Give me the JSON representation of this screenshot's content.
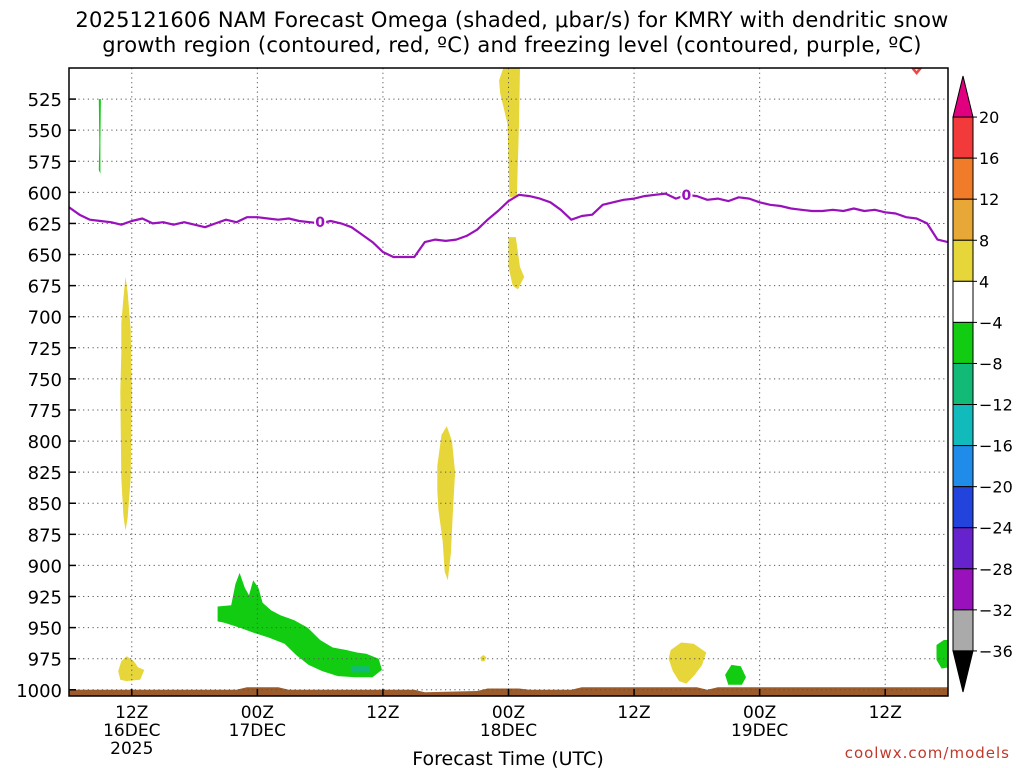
{
  "title": {
    "line1": "2025121606 NAM Forecast Omega (shaded, μbar/s) for KMRY with dendritic snow",
    "line2": "growth region (contoured, red, ºC) and freezing level (contoured, purple, ºC)"
  },
  "watermark": "coolwx.com/models",
  "chart_data": {
    "type": "heatmap",
    "title": "2025121606 NAM Forecast Omega (shaded, μbar/s) for KMRY with dendritic snow growth region (contoured, red, ºC) and freezing level (contoured, purple, ºC)",
    "xlabel": "Forecast Time (UTC)",
    "ylabel": "",
    "x_unit": "hours from 2025-12-16 06Z",
    "xlim": [
      0,
      84
    ],
    "ylim": [
      1005,
      500
    ],
    "y_ticks": [
      525,
      550,
      575,
      600,
      625,
      650,
      675,
      700,
      725,
      750,
      775,
      800,
      825,
      850,
      875,
      900,
      925,
      950,
      975,
      1000
    ],
    "x_ticks": [
      {
        "x": 6,
        "line1": "12Z",
        "line2": "16DEC",
        "line3": "2025"
      },
      {
        "x": 18,
        "line1": "00Z",
        "line2": "17DEC",
        "line3": ""
      },
      {
        "x": 30,
        "line1": "12Z",
        "line2": "",
        "line3": ""
      },
      {
        "x": 42,
        "line1": "00Z",
        "line2": "18DEC",
        "line3": ""
      },
      {
        "x": 54,
        "line1": "12Z",
        "line2": "",
        "line3": ""
      },
      {
        "x": 66,
        "line1": "00Z",
        "line2": "19DEC",
        "line3": ""
      },
      {
        "x": 78,
        "line1": "12Z",
        "line2": "",
        "line3": ""
      }
    ],
    "colorbar": {
      "labels": [
        "20",
        "16",
        "12",
        "8",
        "4",
        "−4",
        "−8",
        "−12",
        "−16",
        "−20",
        "−24",
        "−28",
        "−32",
        "−36"
      ],
      "colors": [
        "#e0007f",
        "#f23a3a",
        "#f07b28",
        "#e8a838",
        "#e6d63a",
        "#ffffff",
        "#11cc11",
        "#11bb77",
        "#11bbbb",
        "#1e8ce8",
        "#2244dd",
        "#6622cc",
        "#9911bb",
        "#aaaaaa",
        "#000000"
      ]
    },
    "freezing_level": {
      "label": "0",
      "color": "#9911bb",
      "points": [
        [
          0,
          612
        ],
        [
          1,
          618
        ],
        [
          2,
          622
        ],
        [
          3,
          623
        ],
        [
          4,
          624
        ],
        [
          5,
          626
        ],
        [
          6,
          623
        ],
        [
          7,
          621
        ],
        [
          8,
          625
        ],
        [
          9,
          624
        ],
        [
          10,
          626
        ],
        [
          11,
          624
        ],
        [
          12,
          626
        ],
        [
          13,
          628
        ],
        [
          14,
          625
        ],
        [
          15,
          622
        ],
        [
          16,
          624
        ],
        [
          17,
          620
        ],
        [
          18,
          620
        ],
        [
          19,
          621
        ],
        [
          20,
          622
        ],
        [
          21,
          621
        ],
        [
          22,
          623
        ],
        [
          23,
          624
        ],
        [
          24,
          625
        ],
        [
          25,
          623
        ],
        [
          26,
          625
        ],
        [
          27,
          628
        ],
        [
          28,
          634
        ],
        [
          29,
          640
        ],
        [
          30,
          648
        ],
        [
          31,
          652
        ],
        [
          32,
          652
        ],
        [
          33,
          652
        ],
        [
          34,
          640
        ],
        [
          35,
          638
        ],
        [
          36,
          639
        ],
        [
          37,
          638
        ],
        [
          38,
          635
        ],
        [
          39,
          630
        ],
        [
          40,
          622
        ],
        [
          41,
          615
        ],
        [
          42,
          607
        ],
        [
          43,
          602
        ],
        [
          44,
          603
        ],
        [
          45,
          605
        ],
        [
          46,
          608
        ],
        [
          47,
          614
        ],
        [
          48,
          622
        ],
        [
          49,
          619
        ],
        [
          50,
          618
        ],
        [
          51,
          610
        ],
        [
          52,
          608
        ],
        [
          53,
          606
        ],
        [
          54,
          605
        ],
        [
          55,
          603
        ],
        [
          56,
          602
        ],
        [
          57,
          601
        ],
        [
          58,
          605
        ],
        [
          59,
          602
        ],
        [
          60,
          603
        ],
        [
          61,
          606
        ],
        [
          62,
          605
        ],
        [
          63,
          607
        ],
        [
          64,
          604
        ],
        [
          65,
          605
        ],
        [
          66,
          608
        ],
        [
          67,
          610
        ],
        [
          68,
          611
        ],
        [
          69,
          613
        ],
        [
          70,
          614
        ],
        [
          71,
          615
        ],
        [
          72,
          615
        ],
        [
          73,
          614
        ],
        [
          74,
          615
        ],
        [
          75,
          613
        ],
        [
          76,
          615
        ],
        [
          77,
          614
        ],
        [
          78,
          616
        ],
        [
          79,
          617
        ],
        [
          80,
          620
        ],
        [
          81,
          621
        ],
        [
          82,
          625
        ],
        [
          83,
          638
        ],
        [
          84,
          640
        ]
      ]
    },
    "omega_regions": [
      {
        "value": 4,
        "color": "#e6d63a",
        "points": [
          [
            41.5,
            500
          ],
          [
            43.1,
            500
          ],
          [
            43.0,
            545
          ],
          [
            42.8,
            603
          ],
          [
            42.1,
            604
          ],
          [
            41.9,
            545
          ],
          [
            41.2,
            520
          ],
          [
            41.1,
            510
          ]
        ]
      },
      {
        "value": 4,
        "color": "#e6d63a",
        "points": [
          [
            42.0,
            636
          ],
          [
            42.7,
            636
          ],
          [
            43.1,
            660
          ],
          [
            43.5,
            668
          ],
          [
            42.9,
            678
          ],
          [
            42.4,
            675
          ],
          [
            42.0,
            660
          ]
        ]
      },
      {
        "value": 4,
        "color": "#e6d63a",
        "points": [
          [
            5.0,
            705
          ],
          [
            5.2,
            685
          ],
          [
            5.4,
            668
          ],
          [
            5.6,
            680
          ],
          [
            5.9,
            710
          ],
          [
            6.0,
            760
          ],
          [
            5.9,
            830
          ],
          [
            5.6,
            862
          ],
          [
            5.4,
            872
          ],
          [
            5.2,
            860
          ],
          [
            5.0,
            830
          ],
          [
            4.9,
            760
          ],
          [
            5.0,
            730
          ]
        ]
      },
      {
        "value": 4,
        "color": "#e6d63a",
        "points": [
          [
            35.2,
            820
          ],
          [
            35.6,
            795
          ],
          [
            36.1,
            788
          ],
          [
            36.6,
            800
          ],
          [
            36.9,
            825
          ],
          [
            36.7,
            855
          ],
          [
            36.5,
            890
          ],
          [
            36.2,
            912
          ],
          [
            35.9,
            905
          ],
          [
            35.7,
            880
          ],
          [
            35.3,
            855
          ],
          [
            35.2,
            840
          ]
        ]
      },
      {
        "value": 4,
        "color": "#e6d63a",
        "points": [
          [
            4.7,
            985
          ],
          [
            5.0,
            977
          ],
          [
            5.5,
            973
          ],
          [
            6.2,
            977
          ],
          [
            6.6,
            982
          ],
          [
            7.2,
            984
          ],
          [
            6.8,
            992
          ],
          [
            5.5,
            993
          ],
          [
            4.9,
            992
          ]
        ]
      },
      {
        "value": 4,
        "color": "#e6d63a",
        "points": [
          [
            57.5,
            968
          ],
          [
            58.5,
            962
          ],
          [
            59.7,
            963
          ],
          [
            60.9,
            970
          ],
          [
            60.5,
            980
          ],
          [
            59.8,
            988
          ],
          [
            59.0,
            995
          ],
          [
            58.3,
            993
          ],
          [
            57.7,
            985
          ],
          [
            57.3,
            975
          ]
        ]
      },
      {
        "value": 4,
        "color": "#e6d63a",
        "points": [
          [
            39.3,
            974
          ],
          [
            39.6,
            972
          ],
          [
            39.9,
            974
          ],
          [
            39.7,
            977
          ],
          [
            39.4,
            977
          ]
        ]
      },
      {
        "value": -4,
        "color": "#11cc11",
        "points": [
          [
            2.85,
            525
          ],
          [
            3.05,
            525
          ],
          [
            3.0,
            560
          ],
          [
            3.0,
            585
          ],
          [
            2.85,
            582
          ],
          [
            2.9,
            560
          ]
        ]
      },
      {
        "value": -4,
        "color": "#11cc11",
        "points": [
          [
            14.2,
            933
          ],
          [
            15.5,
            932
          ],
          [
            15.9,
            915
          ],
          [
            16.3,
            906
          ],
          [
            16.8,
            918
          ],
          [
            17.2,
            924
          ],
          [
            17.6,
            912
          ],
          [
            18.1,
            918
          ],
          [
            18.5,
            930
          ],
          [
            19.3,
            936
          ],
          [
            20.2,
            940
          ],
          [
            21.5,
            944
          ],
          [
            22.8,
            950
          ],
          [
            24.0,
            960
          ],
          [
            25.2,
            966
          ],
          [
            26.5,
            968
          ],
          [
            27.5,
            970
          ],
          [
            28.4,
            971
          ],
          [
            29.6,
            975
          ],
          [
            29.9,
            984
          ],
          [
            29.0,
            990
          ],
          [
            27.4,
            990
          ],
          [
            25.7,
            989
          ],
          [
            24.2,
            985
          ],
          [
            22.9,
            980
          ],
          [
            21.7,
            972
          ],
          [
            20.6,
            963
          ],
          [
            19.1,
            958
          ],
          [
            17.6,
            954
          ],
          [
            16.3,
            950
          ],
          [
            14.8,
            946
          ],
          [
            14.2,
            945
          ]
        ]
      },
      {
        "value": -4,
        "color": "#11cc11",
        "points": [
          [
            62.7,
            988
          ],
          [
            63.3,
            980
          ],
          [
            64.2,
            981
          ],
          [
            64.7,
            990
          ],
          [
            64.3,
            996
          ],
          [
            63.0,
            996
          ]
        ]
      },
      {
        "value": -4,
        "color": "#11cc11",
        "points": [
          [
            82.9,
            964
          ],
          [
            83.6,
            960
          ],
          [
            84.0,
            960
          ],
          [
            84.0,
            982
          ],
          [
            83.4,
            983
          ],
          [
            82.9,
            976
          ]
        ]
      },
      {
        "value": -8,
        "color": "#11bb77",
        "points": [
          [
            26.9,
            981
          ],
          [
            28.7,
            981
          ],
          [
            28.8,
            986
          ],
          [
            27.0,
            986
          ]
        ]
      }
    ],
    "snow_growth_region": {
      "color": "#ee4444",
      "points": [
        [
          80.6,
          500
        ],
        [
          81.4,
          500
        ],
        [
          81.0,
          504
        ]
      ]
    },
    "terrain_color": "#9b5b2a",
    "terrain_top": [
      [
        0,
        1000
      ],
      [
        16,
        1000
      ],
      [
        17,
        998
      ],
      [
        20,
        998
      ],
      [
        21,
        1000
      ],
      [
        33,
        1000
      ],
      [
        34,
        1002
      ],
      [
        39,
        1001
      ],
      [
        40,
        999
      ],
      [
        43,
        999
      ],
      [
        44,
        1000
      ],
      [
        48,
        1000
      ],
      [
        49,
        998
      ],
      [
        60,
        998
      ],
      [
        61,
        1000
      ],
      [
        62,
        998
      ],
      [
        84,
        998
      ]
    ]
  }
}
